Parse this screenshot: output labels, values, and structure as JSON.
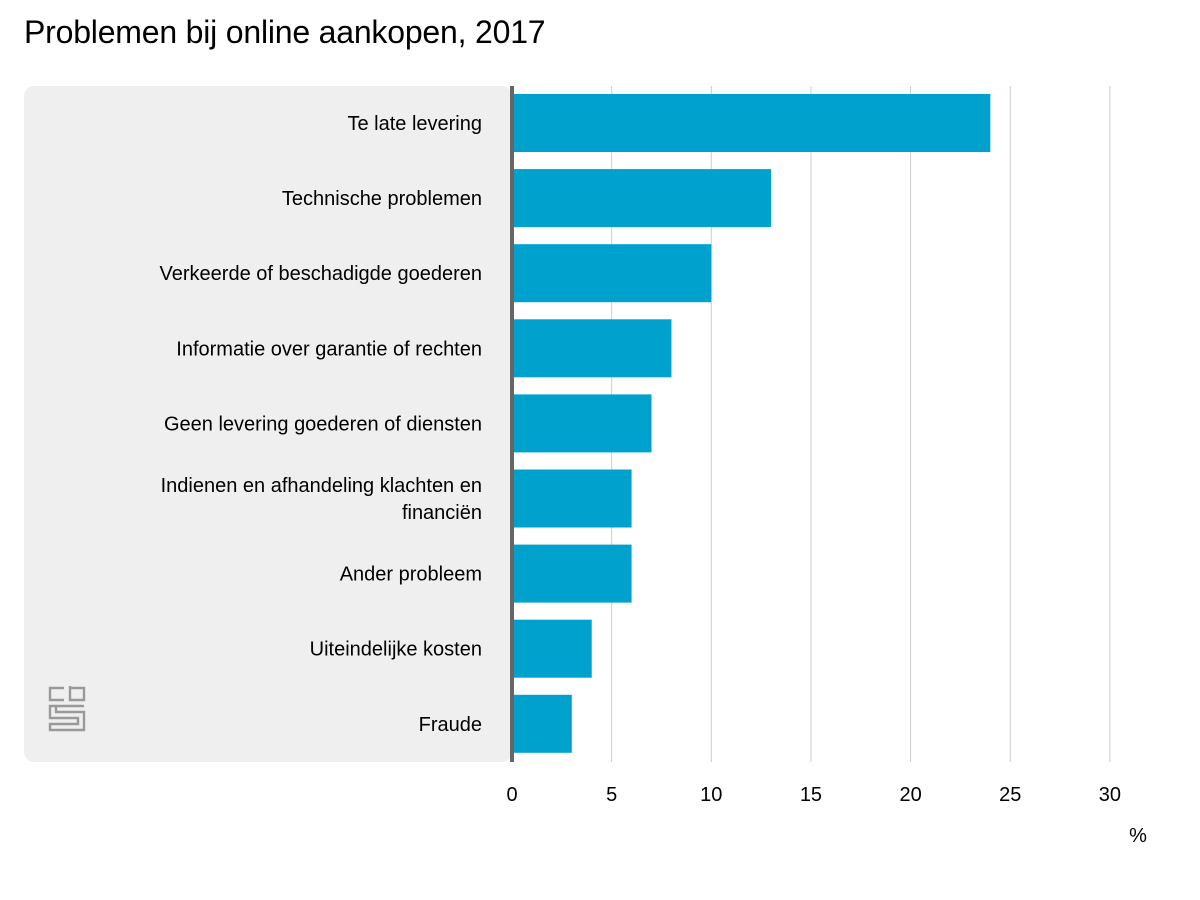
{
  "chart_data": {
    "type": "bar",
    "orientation": "horizontal",
    "title": "Problemen bij online aankopen, 2017",
    "categories": [
      "Te late levering",
      "Technische problemen",
      "Verkeerde of beschadigde goederen",
      "Informatie over garantie of rechten",
      "Geen levering goederen of diensten",
      "Indienen en afhandeling klachten en financiën",
      "Ander probleem",
      "Uiteindelijke kosten",
      "Fraude"
    ],
    "values": [
      24,
      13,
      10,
      8,
      7,
      6,
      6,
      4,
      3
    ],
    "xlabel": "%",
    "ylabel": "",
    "xlim": [
      0,
      30
    ],
    "xticks": [
      0,
      5,
      10,
      15,
      20,
      25,
      30
    ],
    "grid": true,
    "legend": "none",
    "colors": {
      "bar": "#00a1cd",
      "label_panel": "#efefef",
      "axis": "#666666",
      "grid": "#cccccc",
      "logo": "#999999"
    }
  },
  "logo": {
    "name": "cbs-logo",
    "text": "cbs"
  }
}
